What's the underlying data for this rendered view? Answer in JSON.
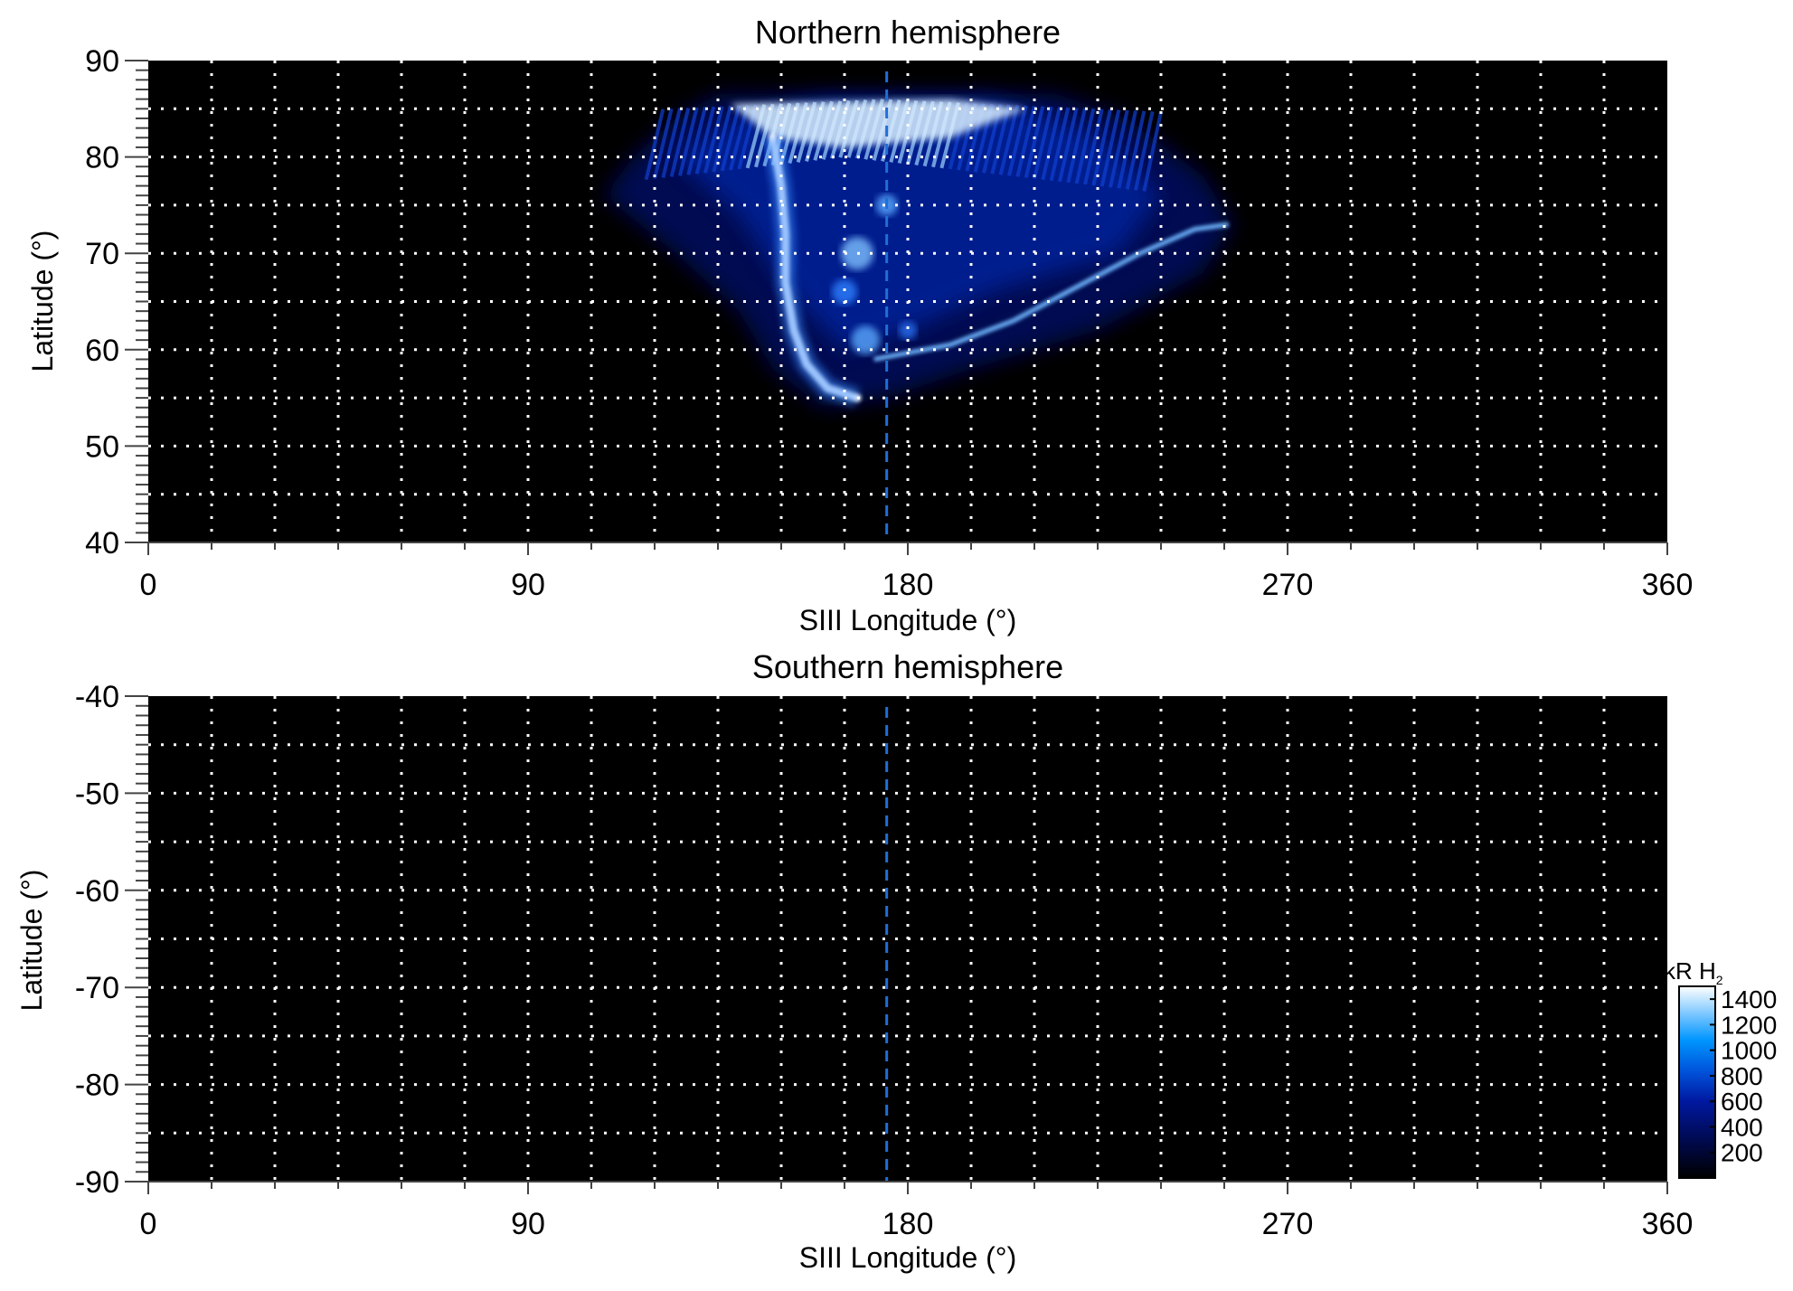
{
  "chart_data": [
    {
      "type": "heatmap",
      "title": "Northern hemisphere",
      "xlabel": "SIII Longitude (°)",
      "ylabel": "Latitude (°)",
      "xlim": [
        0,
        360
      ],
      "ylim": [
        40,
        90
      ],
      "xticks": [
        "0",
        "90",
        "180",
        "270",
        "360"
      ],
      "yticks": [
        "40",
        "50",
        "60",
        "70",
        "80",
        "90"
      ],
      "grid": true,
      "grid_style": "white dotted, every 15° longitude and 5° latitude",
      "reference_line": {
        "longitude": 175,
        "style": "dashed",
        "color": "#1f6fd6"
      },
      "background": "#000000",
      "emission": "auroral emission between about 105° and 255° longitude, 55°–87° latitude; bright main arc near 150°–170° longitude, bright polar region near 85° latitude, bright arc from 175° to 255° longitude rising from 59° to 73° latitude"
    },
    {
      "type": "heatmap",
      "title": "Southern hemisphere",
      "xlabel": "SIII Longitude (°)",
      "ylabel": "Latitude (°)",
      "xlim": [
        0,
        360
      ],
      "ylim": [
        -90,
        -40
      ],
      "xticks": [
        "0",
        "90",
        "180",
        "270",
        "360"
      ],
      "yticks": [
        "-40",
        "-50",
        "-60",
        "-70",
        "-80",
        "-90"
      ],
      "grid": true,
      "reference_line": {
        "longitude": 175,
        "style": "dashed",
        "color": "#1f6fd6"
      },
      "background": "#000000",
      "emission": "none"
    }
  ],
  "colorbar": {
    "label": "kR H",
    "label_subscript": "2",
    "ticks": [
      "200",
      "400",
      "600",
      "800",
      "1000",
      "1200",
      "1400"
    ],
    "tick_values": [
      200,
      400,
      600,
      800,
      1000,
      1200,
      1400
    ],
    "range": [
      0,
      1500
    ],
    "colors": [
      "#000000",
      "#000a50",
      "#0018a0",
      "#0050d8",
      "#0096ff",
      "#80c8ff",
      "#ffffff"
    ]
  }
}
